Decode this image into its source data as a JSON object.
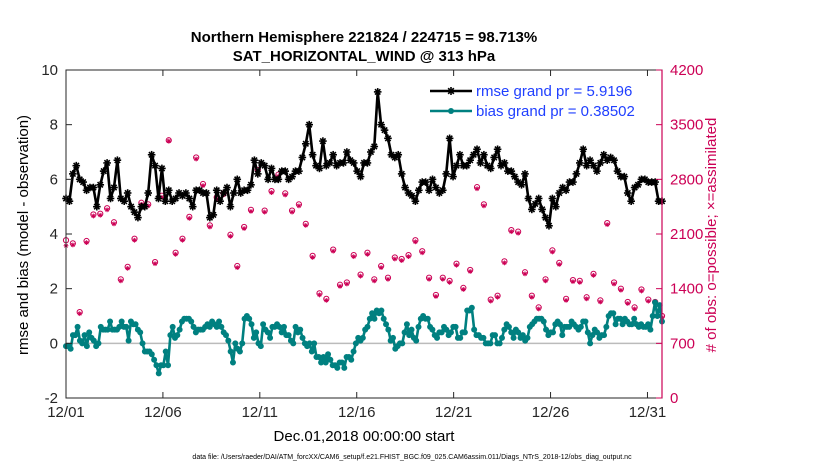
{
  "chart_data": {
    "type": "line",
    "title": "Northern Hemisphere 221824 / 224715 = 98.713%",
    "subtitle": "SAT_HORIZONTAL_WIND @ 313 hPa",
    "xlabel": "Dec.01,2018 00:00:00 start",
    "ylabel": "rmse and bias (model - observation)",
    "y2label": "# of obs: o=possible; ×=assimilated",
    "footnote": "data file: /Users/raeder/DAI/ATM_forcXX/CAM6_setup/f.e21.FHIST_BGC.f09_025.CAM6assim.011/Diags_NTrS_2018-12/obs_diag_output.nc",
    "xlim": [
      1,
      31.75
    ],
    "ylim": [
      -2,
      10
    ],
    "y2lim": [
      0,
      4200
    ],
    "x_ticks": [
      1,
      6,
      11,
      16,
      21,
      26,
      31
    ],
    "x_tick_labels": [
      "12/01",
      "12/06",
      "12/11",
      "12/16",
      "12/21",
      "12/26",
      "12/31"
    ],
    "y_ticks": [
      -2,
      0,
      2,
      4,
      6,
      8,
      10
    ],
    "y_tick_labels": [
      "-2",
      "0",
      "2",
      "4",
      "6",
      "8",
      "10"
    ],
    "y2_ticks": [
      0,
      700,
      1400,
      2100,
      2800,
      3500,
      4200
    ],
    "y2_tick_labels": [
      "0",
      "700",
      "1400",
      "2100",
      "2800",
      "3500",
      "4200"
    ],
    "grid": false,
    "legend_position": "top-right",
    "series": [
      {
        "name": "rmse grand pr = 5.9196",
        "color": "#000000",
        "marker": "asterisk",
        "axis": "left",
        "values": [
          5.3,
          5.2,
          6.2,
          6.5,
          6.0,
          5.9,
          5.6,
          5.7,
          5.7,
          5.0,
          5.8,
          6.3,
          6.6,
          5.3,
          5.7,
          6.7,
          5.3,
          5.2,
          5.5,
          5.0,
          4.8,
          4.6,
          5.0,
          5.0,
          5.5,
          6.9,
          6.5,
          5.3,
          6.4,
          5.2,
          5.6,
          5.2,
          5.3,
          5.5,
          5.4,
          5.5,
          5.3,
          5.0,
          5.6,
          5.6,
          5.5,
          5.5,
          4.6,
          4.7,
          5.6,
          5.2,
          5.5,
          5.7,
          5.0,
          5.5,
          6.0,
          5.5,
          5.6,
          5.6,
          5.8,
          6.7,
          6.2,
          6.6,
          6.5,
          6.0,
          6.4,
          6.0,
          6.0,
          6.3,
          6.3,
          6.0,
          6.1,
          6.3,
          6.3,
          6.8,
          7.3,
          8.0,
          6.9,
          6.5,
          6.4,
          7.4,
          6.5,
          6.6,
          6.9,
          6.5,
          6.6,
          6.6,
          7.0,
          6.7,
          6.6,
          6.3,
          6.1,
          6.6,
          6.6,
          7.0,
          7.2,
          9.2,
          8.0,
          7.8,
          7.5,
          6.9,
          6.8,
          6.9,
          6.2,
          5.7,
          5.5,
          5.4,
          5.2,
          5.6,
          5.9,
          5.9,
          5.6,
          6.0,
          5.7,
          5.5,
          5.6,
          6.2,
          7.5,
          6.1,
          6.5,
          6.9,
          6.5,
          6.5,
          6.7,
          6.9,
          7.1,
          6.6,
          6.9,
          6.5,
          6.4,
          6.8,
          7.1,
          6.5,
          6.6,
          6.3,
          6.3,
          6.1,
          5.9,
          5.8,
          6.2,
          5.3,
          4.9,
          5.1,
          5.3,
          4.9,
          4.6,
          4.3,
          5.3,
          5.0,
          5.5,
          5.7,
          5.6,
          5.9,
          5.9,
          6.2,
          6.6,
          7.1,
          6.5,
          6.7,
          6.5,
          6.3,
          6.6,
          6.9,
          6.7,
          6.8,
          6.7,
          6.3,
          6.1,
          6.1,
          5.5,
          5.2,
          5.7,
          5.8,
          6.0,
          6.0,
          5.9,
          5.9,
          5.9,
          5.2,
          5.2
        ]
      },
      {
        "name": "bias grand pr = 0.38502",
        "color": "#008080",
        "marker": "circle",
        "axis": "left",
        "values": [
          -0.1,
          -0.1,
          -0.2,
          0.3,
          0.3,
          0.6,
          0.1,
          0.0,
          0.3,
          -0.1,
          0.4,
          0.2,
          0.1,
          -0.1,
          0.0,
          0.6,
          0.5,
          0.5,
          0.5,
          0.8,
          0.5,
          0.5,
          0.5,
          0.6,
          0.8,
          0.6,
          0.6,
          0.1,
          0.8,
          0.7,
          0.7,
          0.5,
          0.4,
          0.0,
          -0.3,
          -0.3,
          -0.3,
          -0.4,
          -0.6,
          -0.8,
          -1.1,
          -0.8,
          -0.8,
          -0.3,
          -0.8,
          0.3,
          0.6,
          0.2,
          0.3,
          0.5,
          0.8,
          0.9,
          0.9,
          0.9,
          0.8,
          0.6,
          0.4,
          0.5,
          0.5,
          0.5,
          0.6,
          0.7,
          0.6,
          0.8,
          0.7,
          0.6,
          0.8,
          0.6,
          0.4,
          0.3,
          0.1,
          -0.3,
          -0.7,
          0.0,
          -0.2,
          -0.3,
          0.0,
          0.9,
          1.0,
          0.9,
          0.7,
          0.2,
          0.4,
          0.0,
          -0.1,
          0.7,
          0.5,
          0.4,
          0.2,
          0.6,
          0.6,
          0.7,
          0.6,
          0.4,
          0.6,
          0.3,
          0.3,
          0.1,
          0.0,
          0.6,
          0.4,
          0.5,
          0.2,
          0.0,
          -0.1,
          0.0,
          -0.3,
          0.0,
          -0.5,
          -0.5,
          -0.7,
          -0.5,
          -0.7,
          -0.4,
          -0.6,
          -0.8,
          -0.8,
          -0.9,
          -0.7,
          -0.7,
          -0.9,
          -0.5,
          -0.5,
          -0.6,
          -0.3,
          0.0,
          0.2,
          0.1,
          0.2,
          0.5,
          0.6,
          0.9,
          1.1,
          0.9,
          1.2,
          1.1,
          1.2,
          0.9,
          0.7,
          0.5,
          0.1,
          0.2,
          -0.2,
          -0.1,
          0.0,
          0.0,
          0.4,
          0.7,
          0.3,
          0.5,
          0.2,
          0.1,
          0.6,
          0.9,
          1.0,
          0.9,
          0.9,
          0.6,
          0.5,
          0.3,
          0.2,
          0.4,
          0.4,
          0.6,
          0.5,
          0.3,
          0.4,
          0.6,
          0.6,
          0.2,
          0.2,
          0.4,
          0.4,
          1.2,
          1.2,
          1.3,
          0.5,
          0.3,
          0.3,
          0.2,
          0.2,
          0.0,
          0.0,
          0.0,
          0.3,
          0.3,
          0.0,
          0.0,
          0.2,
          0.5,
          0.7,
          0.6,
          0.4,
          0.2,
          0.5,
          0.4,
          0.2,
          0.3,
          0.1,
          0.2,
          0.6,
          0.7,
          0.8,
          0.9,
          0.9,
          0.9,
          0.8,
          0.5,
          0.3,
          0.4,
          0.4,
          0.7,
          0.8,
          0.7,
          0.3,
          0.6,
          0.6,
          0.6,
          0.8,
          0.7,
          0.6,
          0.5,
          0.6,
          0.8,
          0.8,
          0.4,
          0.0,
          0.3,
          0.5,
          0.4,
          0.2,
          0.3,
          0.3,
          0.6,
          1.0,
          1.1,
          1.1,
          0.7,
          0.9,
          0.9,
          0.7,
          0.9,
          0.8,
          0.7,
          0.7,
          0.9,
          0.7,
          0.6,
          0.7,
          0.6,
          0.6,
          0.7,
          0.5,
          1.0,
          1.5,
          1.0,
          1.4,
          0.8
        ]
      },
      {
        "name": "obs possible",
        "color": "#cc0055",
        "marker": "o",
        "axis": "right",
        "values": [
          2020,
          1980,
          1100,
          2010,
          2350,
          2360,
          2430,
          2250,
          1520,
          1680,
          2040,
          2500,
          2480,
          1740,
          2590,
          3300,
          1860,
          2040,
          2320,
          3080,
          2740,
          2210,
          2570,
          2620,
          2090,
          1690,
          2190,
          2410,
          2920,
          2400,
          2650,
          2860,
          2620,
          2400,
          2480,
          2230,
          1820,
          1340,
          1270,
          1900,
          1450,
          1480,
          1830,
          1580,
          1860,
          1520,
          1690,
          1540,
          1800,
          1780,
          1830,
          2020,
          1880,
          1540,
          1320,
          1540,
          1500,
          1720,
          1410,
          1640,
          2700,
          2480,
          1260,
          1310,
          1750,
          2150,
          2130,
          1610,
          1310,
          1160,
          1520,
          1890,
          1730,
          1270,
          1510,
          1500,
          1290,
          1590,
          1250,
          2240,
          1480,
          1400,
          1230,
          1160,
          1390,
          1260,
          1230,
          1050
        ]
      },
      {
        "name": "obs assimilated",
        "color": "#cc0055",
        "marker": "x",
        "axis": "right",
        "values": [
          1950,
          1960,
          1080,
          1990,
          2330,
          2340,
          2410,
          2230,
          1500,
          1660,
          2020,
          2480,
          2460,
          1720,
          2570,
          3290,
          1840,
          2020,
          2300,
          3060,
          2720,
          2190,
          2550,
          2600,
          2070,
          1670,
          2170,
          2390,
          2900,
          2380,
          2630,
          2840,
          2600,
          2380,
          2460,
          2210,
          1800,
          1320,
          1250,
          1880,
          1430,
          1460,
          1810,
          1560,
          1840,
          1500,
          1670,
          1520,
          1780,
          1760,
          1810,
          2000,
          1860,
          1520,
          1300,
          1520,
          1480,
          1700,
          1390,
          1620,
          2680,
          2460,
          1240,
          1290,
          1730,
          2130,
          2110,
          1590,
          1290,
          1140,
          1500,
          1870,
          1710,
          1250,
          1490,
          1480,
          1270,
          1570,
          1230,
          2220,
          1460,
          1380,
          1210,
          1140,
          1370,
          1240,
          1210,
          1030
        ]
      }
    ]
  }
}
